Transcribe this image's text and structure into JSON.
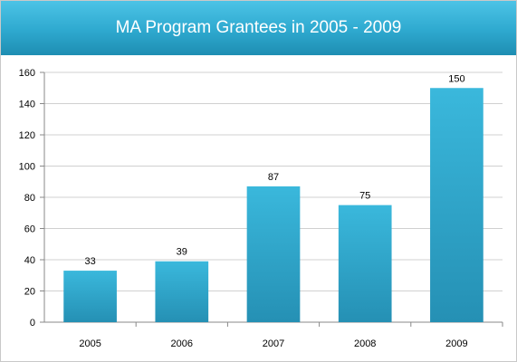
{
  "chart_data": {
    "type": "bar",
    "title": "MA Program Grantees in 2005 - 2009",
    "categories": [
      "2005",
      "2006",
      "2007",
      "2008",
      "2009"
    ],
    "values": [
      33,
      39,
      87,
      75,
      150
    ],
    "data_labels": [
      "33",
      "39",
      "87",
      "75",
      "150"
    ],
    "xlabel": "",
    "ylabel": "",
    "ylim": [
      0,
      160
    ],
    "y_ticks": [
      "0",
      "20",
      "40",
      "60",
      "80",
      "100",
      "120",
      "140",
      "160"
    ],
    "grid": true,
    "legend": "none",
    "colors": {
      "bar_top": "#3ab8dc",
      "bar_bottom": "#2590b4",
      "header": "#2ea9cf",
      "grid": "#d0d0d0"
    }
  }
}
